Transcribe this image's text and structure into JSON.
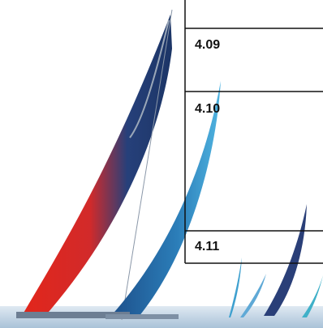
{
  "labels": [
    "4.09",
    "4.10",
    "4.11"
  ]
}
